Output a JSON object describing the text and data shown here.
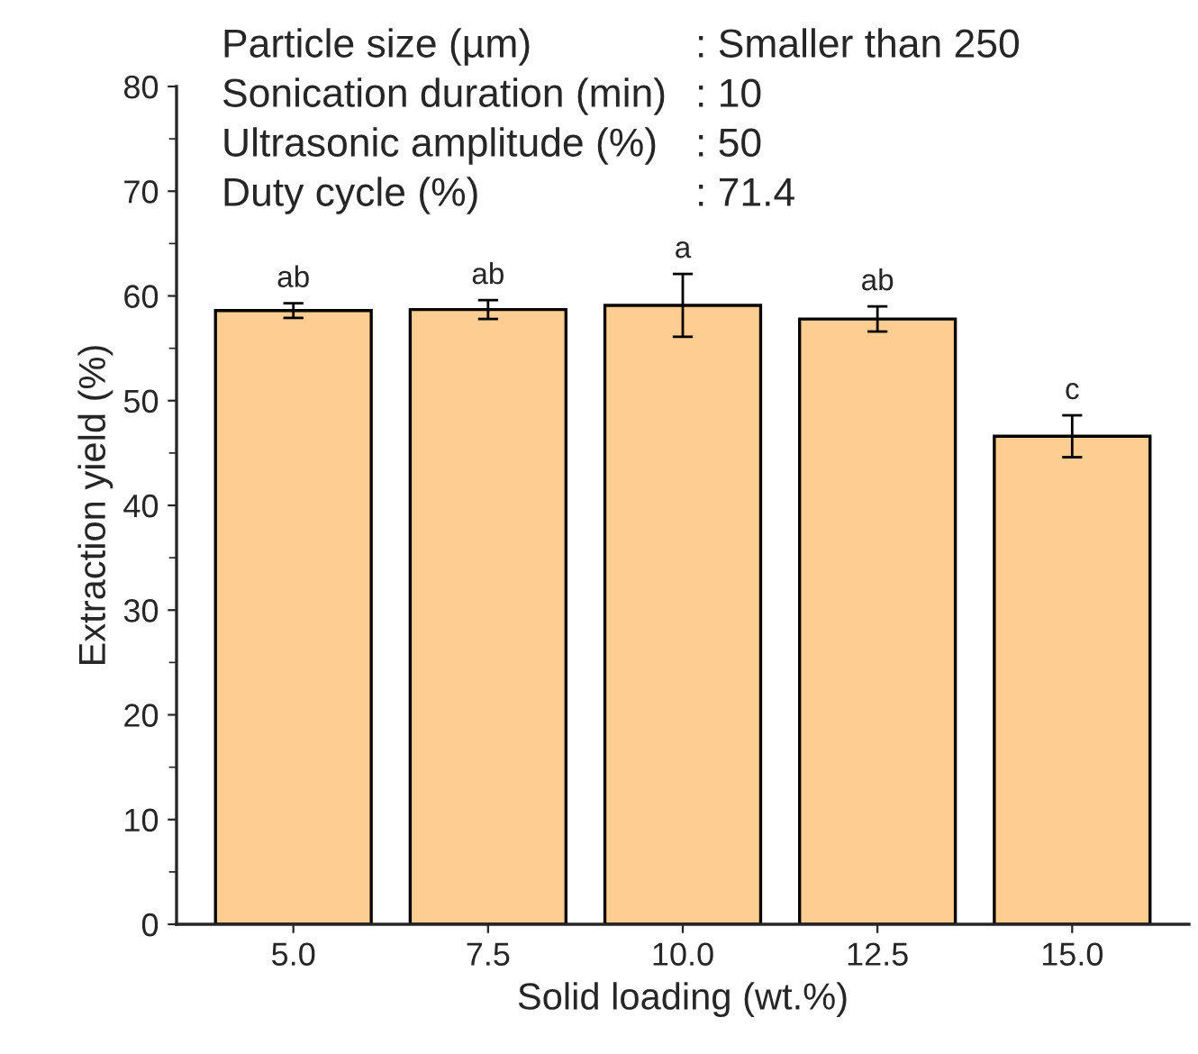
{
  "chart_data": {
    "type": "bar",
    "xlabel": "Solid loading (wt.%)",
    "ylabel": "Extraction yield (%)",
    "categories": [
      "5.0",
      "7.5",
      "10.0",
      "12.5",
      "15.0"
    ],
    "values": [
      58.6,
      58.7,
      59.1,
      57.8,
      46.6
    ],
    "errors": [
      0.7,
      0.9,
      3.0,
      1.2,
      2.0
    ],
    "color": "#fdcd91",
    "ylim": [
      0,
      80
    ],
    "yticks": [
      0,
      10,
      20,
      30,
      40,
      50,
      60,
      70,
      80
    ],
    "grid": false,
    "annotations": [
      {
        "text": "ab",
        "x": "5.0",
        "y": 59.3
      },
      {
        "text": "ab",
        "x": "7.5",
        "y": 59.6
      },
      {
        "text": "a",
        "x": "10.0",
        "y": 62.1
      },
      {
        "text": "ab",
        "x": "12.5",
        "y": 59.0
      },
      {
        "text": "c",
        "x": "15.0",
        "y": 48.6
      },
      "Particle size (µm)",
      ": Smaller than 250",
      "Sonication duration (min)",
      ": 10",
      "Ultrasonic amplitude (%)",
      ": 50",
      "Duty cycle (%)",
      ": 71.4"
    ]
  }
}
